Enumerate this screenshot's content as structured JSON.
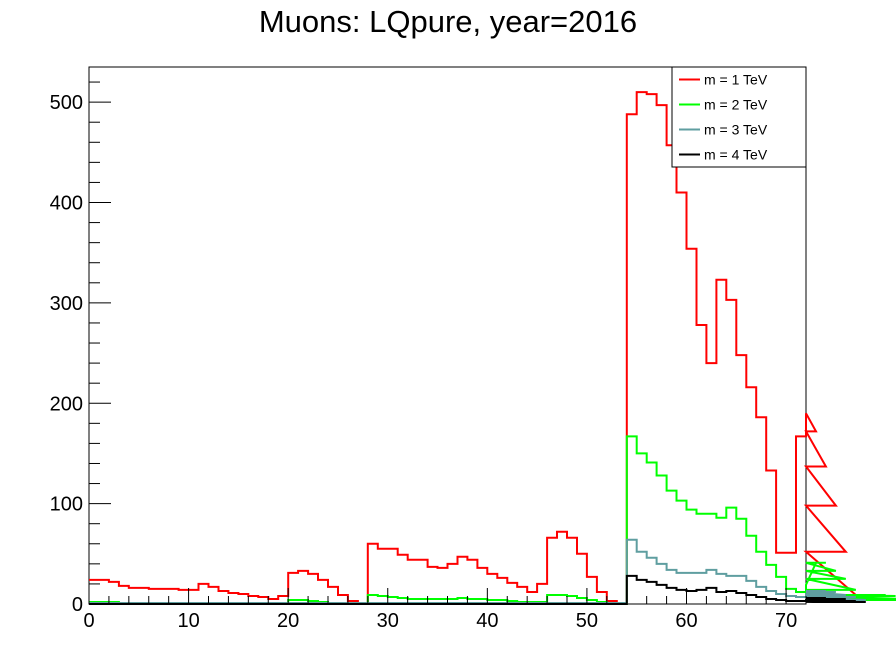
{
  "chart_data": {
    "type": "line",
    "title": "Muons: LQpure, year=2016",
    "xlabel": "",
    "ylabel": "",
    "xlim": [
      0,
      72
    ],
    "ylim": [
      0,
      535
    ],
    "bin_width": 1,
    "x_ticks": [
      0,
      10,
      20,
      30,
      40,
      50,
      60,
      70
    ],
    "y_ticks": [
      0,
      100,
      200,
      300,
      400,
      500
    ],
    "grid": false,
    "legend_position": "top-right",
    "series": [
      {
        "name": "m = 1 TeV",
        "color": "#ff0000",
        "values": [
          24,
          24,
          22,
          18,
          16,
          16,
          15,
          15,
          15,
          14,
          14,
          20,
          17,
          13,
          11,
          10,
          8,
          7,
          5,
          8,
          31,
          33,
          30,
          24,
          17,
          9,
          3,
          0,
          60,
          55,
          55,
          49,
          44,
          44,
          37,
          36,
          40,
          47,
          44,
          36,
          30,
          26,
          21,
          17,
          12,
          20,
          66,
          72,
          66,
          50,
          27,
          12,
          3,
          0,
          488,
          510,
          508,
          497,
          457,
          410,
          354,
          278,
          240,
          323,
          303,
          248,
          216,
          186,
          133,
          51,
          51,
          167,
          190,
          172,
          137,
          98,
          52,
          9
        ]
      },
      {
        "name": "m = 2 TeV",
        "color": "#00ff00",
        "values": [
          2,
          2,
          2,
          1,
          1,
          1,
          1,
          1,
          1,
          1,
          1,
          1,
          1,
          1,
          1,
          1,
          1,
          1,
          1,
          1,
          4,
          4,
          3,
          2,
          1,
          1,
          0,
          0,
          9,
          8,
          7,
          6,
          5,
          5,
          5,
          5,
          5,
          6,
          5,
          5,
          4,
          4,
          3,
          2,
          2,
          2,
          9,
          9,
          8,
          6,
          4,
          2,
          1,
          0,
          167,
          150,
          141,
          128,
          113,
          103,
          94,
          90,
          90,
          86,
          96,
          85,
          68,
          52,
          39,
          27,
          15,
          12,
          19,
          41,
          41,
          33,
          25,
          14,
          5,
          9,
          9,
          8,
          5,
          4
        ]
      },
      {
        "name": "m = 3 TeV",
        "color": "#5f9ea0",
        "values": [
          1,
          1,
          1,
          1,
          1,
          1,
          1,
          1,
          1,
          1,
          1,
          1,
          1,
          1,
          1,
          1,
          1,
          1,
          1,
          1,
          1,
          1,
          1,
          1,
          1,
          1,
          1,
          1,
          1,
          1,
          1,
          1,
          1,
          1,
          1,
          1,
          1,
          1,
          1,
          1,
          1,
          1,
          1,
          1,
          1,
          1,
          1,
          1,
          1,
          1,
          1,
          1,
          1,
          1,
          64,
          52,
          46,
          40,
          34,
          31,
          31,
          31,
          34,
          30,
          28,
          28,
          23,
          17,
          13,
          10,
          8,
          7,
          10,
          11,
          13,
          12,
          9,
          7,
          4
        ]
      },
      {
        "name": "m = 4 TeV",
        "color": "#000000",
        "values": [
          0,
          0,
          0,
          0,
          0,
          0,
          0,
          0,
          0,
          0,
          0,
          0,
          0,
          0,
          0,
          0,
          0,
          0,
          0,
          0,
          0,
          0,
          0,
          0,
          0,
          0,
          0,
          0,
          0,
          0,
          0,
          0,
          0,
          0,
          0,
          0,
          0,
          0,
          0,
          0,
          0,
          0,
          0,
          0,
          0,
          0,
          0,
          0,
          0,
          0,
          0,
          0,
          0,
          0,
          28,
          24,
          22,
          19,
          16,
          14,
          13,
          14,
          16,
          12,
          13,
          11,
          9,
          7,
          5,
          4,
          3,
          3,
          4,
          5,
          6,
          5,
          5,
          3,
          2
        ]
      }
    ]
  }
}
